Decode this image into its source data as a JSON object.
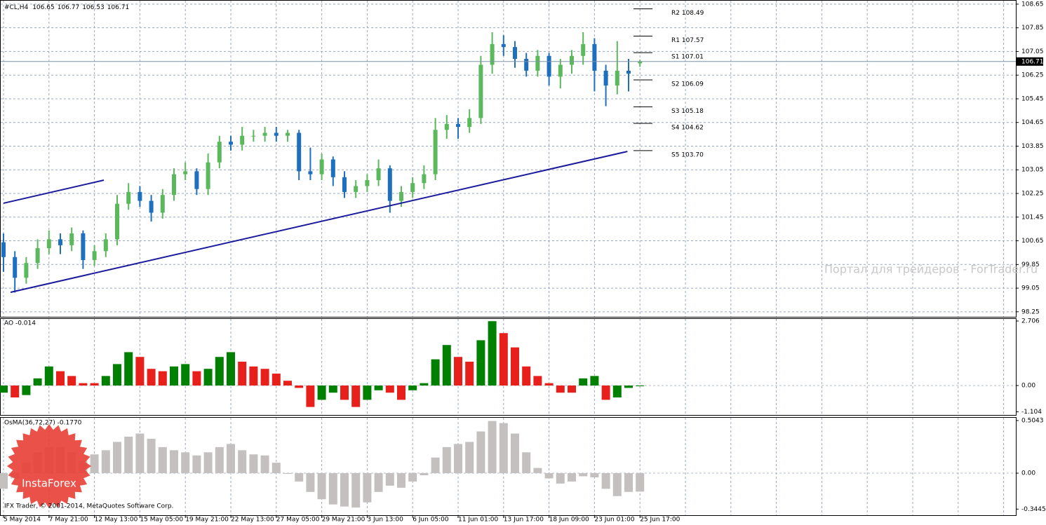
{
  "chart_data": [
    {
      "type": "candlestick",
      "symbol": "#CL,H4",
      "categories": [
        "5 May 2014",
        null,
        null,
        null,
        "7 May 21:00",
        null,
        null,
        null,
        "12 May 13:00",
        null,
        null,
        null,
        "15 May 05:00",
        null,
        null,
        null,
        "19 May 21:00",
        null,
        null,
        null,
        "22 May 13:00",
        null,
        null,
        null,
        "27 May 05:00",
        null,
        null,
        null,
        "29 May 21:00",
        null,
        null,
        null,
        "3 Jun 13:00",
        null,
        null,
        null,
        "6 Jun 05:00",
        null,
        null,
        null,
        "11 Jun 01:00",
        null,
        null,
        null,
        "13 Jun 17:00",
        null,
        null,
        null,
        "18 Jun 09:00",
        null,
        null,
        null,
        "23 Jun 01:00",
        null,
        null,
        null,
        "25 Jun 17:00"
      ],
      "open": [
        100.6,
        100.1,
        99.4,
        99.9,
        100.4,
        100.7,
        100.5,
        100.9,
        100.0,
        100.3,
        100.7,
        101.9,
        102.3,
        102.0,
        101.6,
        102.2,
        102.9,
        103.0,
        102.4,
        103.3,
        104.0,
        103.9,
        104.2,
        104.2,
        104.3,
        104.2,
        104.3,
        103.0,
        102.9,
        103.4,
        102.8,
        102.3,
        102.5,
        102.7,
        103.1,
        102.0,
        102.3,
        102.6,
        102.9,
        104.4,
        104.6,
        104.5,
        104.8,
        106.6,
        107.3,
        107.2,
        106.8,
        106.4,
        106.9,
        106.2,
        106.6,
        106.9,
        107.3,
        106.4,
        105.9,
        106.4,
        106.65
      ],
      "high": [
        100.9,
        100.3,
        100.1,
        100.7,
        101.0,
        100.9,
        101.1,
        101.0,
        100.5,
        100.9,
        102.2,
        102.6,
        102.5,
        102.2,
        102.4,
        103.1,
        103.3,
        103.1,
        103.6,
        104.2,
        104.2,
        104.5,
        104.4,
        104.5,
        104.5,
        104.4,
        104.4,
        103.8,
        103.6,
        103.5,
        103.0,
        102.7,
        102.9,
        103.4,
        103.2,
        102.5,
        102.8,
        103.2,
        104.8,
        104.9,
        104.8,
        105.1,
        106.9,
        107.7,
        107.6,
        107.4,
        107.0,
        107.1,
        107.0,
        106.8,
        107.1,
        107.7,
        107.5,
        106.6,
        107.4,
        106.8,
        106.77
      ],
      "low": [
        99.6,
        98.9,
        99.2,
        99.7,
        100.2,
        100.2,
        100.3,
        99.7,
        99.8,
        100.1,
        100.5,
        101.7,
        101.8,
        101.3,
        101.4,
        102.0,
        102.7,
        102.2,
        102.2,
        103.1,
        103.7,
        103.7,
        104.0,
        104.0,
        104.0,
        104.0,
        102.7,
        102.7,
        102.7,
        102.5,
        102.1,
        102.1,
        102.3,
        102.5,
        101.6,
        101.8,
        102.1,
        102.4,
        102.7,
        104.1,
        104.1,
        104.3,
        104.6,
        106.3,
        106.9,
        106.5,
        106.2,
        106.2,
        105.9,
        105.8,
        106.3,
        106.6,
        105.7,
        105.2,
        105.6,
        105.7,
        106.53
      ],
      "close": [
        100.1,
        99.4,
        99.9,
        100.4,
        100.7,
        100.5,
        100.9,
        100.0,
        100.3,
        100.7,
        101.9,
        102.3,
        102.0,
        101.6,
        102.2,
        102.9,
        103.0,
        102.4,
        103.3,
        104.0,
        103.9,
        104.2,
        104.2,
        104.3,
        104.2,
        104.3,
        103.0,
        102.9,
        103.4,
        102.8,
        102.3,
        102.5,
        102.7,
        103.1,
        102.0,
        102.3,
        102.6,
        102.9,
        104.4,
        104.6,
        104.5,
        104.8,
        106.6,
        107.3,
        107.2,
        106.8,
        106.4,
        106.9,
        106.2,
        106.6,
        106.9,
        107.3,
        106.4,
        105.9,
        106.4,
        106.3,
        106.71
      ],
      "up_color": "#5cb85c",
      "down_color": "#1f6fbf",
      "ylim": [
        98.08,
        108.79
      ],
      "yticks": [
        108.65,
        107.85,
        107.05,
        106.25,
        105.45,
        104.65,
        103.85,
        103.05,
        102.25,
        101.45,
        100.65,
        99.85,
        99.05,
        98.25
      ],
      "grid": true,
      "trendlines": [
        {
          "x": [
            0,
            8.83
          ],
          "y": [
            101.92,
            102.7
          ]
        },
        {
          "x": [
            0.62,
            54.9
          ],
          "y": [
            98.91,
            103.67
          ]
        }
      ],
      "trendline_color": "#1a1a9c",
      "pivots": {
        "labels": [
          "R2 108.49",
          "R1 107.57",
          "S1 107.01",
          "S2 106.09",
          "S3 105.18",
          "S4 104.62",
          "S5 103.70"
        ],
        "values": [
          108.49,
          107.57,
          107.01,
          106.09,
          105.18,
          104.62,
          103.7
        ]
      }
    },
    {
      "type": "bar",
      "title": "AO -0.014",
      "values": [
        -0.3,
        -0.5,
        -0.4,
        0.3,
        0.8,
        0.6,
        0.4,
        0.1,
        0.1,
        0.4,
        0.9,
        1.4,
        1.2,
        0.7,
        0.6,
        0.8,
        0.9,
        0.6,
        0.7,
        1.2,
        1.4,
        1.0,
        0.8,
        0.7,
        0.5,
        0.2,
        -0.1,
        -0.9,
        -0.6,
        -0.3,
        -0.6,
        -0.9,
        -0.6,
        -0.2,
        -0.3,
        -0.6,
        -0.2,
        0.1,
        1.1,
        1.7,
        1.2,
        1.0,
        1.9,
        2.7,
        2.2,
        1.6,
        0.8,
        0.4,
        0.1,
        -0.3,
        -0.3,
        0.3,
        0.4,
        -0.6,
        -0.5,
        -0.1,
        -0.014
      ],
      "up_color": "#008000",
      "down_color": "#e8201c",
      "ylim": [
        -1.235,
        2.824
      ],
      "yticks": [
        2.706,
        {
          "value": 0,
          "label": "0.00"
        },
        -1.104
      ]
    },
    {
      "type": "bar",
      "title": "OsMA(36,72,27) -0.1770",
      "values": [
        -0.15,
        -0.05,
        0.1,
        0.2,
        0.25,
        0.25,
        0.2,
        0.12,
        0.18,
        0.22,
        0.3,
        0.35,
        0.38,
        0.33,
        0.25,
        0.22,
        0.2,
        0.17,
        0.2,
        0.25,
        0.28,
        0.22,
        0.18,
        0.17,
        0.1,
        0.0,
        -0.08,
        -0.18,
        -0.25,
        -0.3,
        -0.32,
        -0.33,
        -0.28,
        -0.18,
        -0.12,
        -0.14,
        -0.08,
        -0.02,
        0.15,
        0.25,
        0.28,
        0.3,
        0.4,
        0.5,
        0.48,
        0.38,
        0.2,
        0.05,
        -0.05,
        -0.1,
        -0.08,
        -0.03,
        -0.04,
        -0.15,
        -0.22,
        -0.18,
        -0.177
      ],
      "color": "#c4c0c0",
      "ylim": [
        -0.403,
        0.538
      ],
      "yticks": [
        0.5043,
        {
          "value": 0,
          "label": "0.00"
        },
        -0.3445
      ]
    }
  ],
  "watermark": "Портал для трейдеров - ForTrader.ru",
  "footer": "IFX Trader, © 2001-2014, MetaQuotes Software Corp.",
  "logo": "InstaForex"
}
